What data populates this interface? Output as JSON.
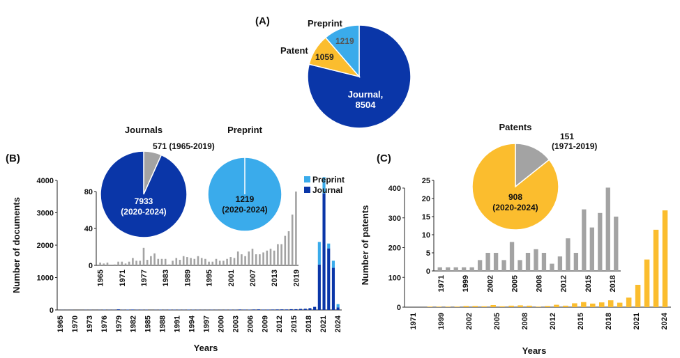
{
  "chart_data": [
    {
      "panel": "A",
      "type": "pie",
      "title": "(A)",
      "slices": [
        {
          "label": "Journal,",
          "label2": "8504",
          "value": 8504,
          "color": "#0a36a8"
        },
        {
          "label": "Patent",
          "value": 1059,
          "color": "#fbbd2e"
        },
        {
          "label": "Preprint",
          "value": 1219,
          "color": "#3aabeb"
        }
      ],
      "values_text": {
        "patent": "1059",
        "preprint": "1219"
      }
    },
    {
      "panel": "B",
      "type": "bar",
      "title": "(B)",
      "ylabel": "Number of documents",
      "xlabel": "Years",
      "ylim": [
        0,
        4000
      ],
      "yticks": [
        "0",
        "1000",
        "2000",
        "3000",
        "4000"
      ],
      "xtick_labels": [
        "1965",
        "1970",
        "1973",
        "1976",
        "1979",
        "1982",
        "1985",
        "1988",
        "1991",
        "1994",
        "1997",
        "2000",
        "2003",
        "2006",
        "2009",
        "2012",
        "2015",
        "2018",
        "2021",
        "2024"
      ],
      "legend": [
        "Preprint",
        "Journal"
      ],
      "colors": {
        "journal": "#0a36a8",
        "preprint": "#3aabeb"
      },
      "years": [
        1965,
        1966,
        1967,
        1968,
        1969,
        1970,
        1971,
        1972,
        1973,
        1974,
        1975,
        1976,
        1977,
        1978,
        1979,
        1980,
        1981,
        1982,
        1983,
        1984,
        1985,
        1986,
        1987,
        1988,
        1989,
        1990,
        1991,
        1992,
        1993,
        1994,
        1995,
        1996,
        1997,
        1998,
        1999,
        2000,
        2001,
        2002,
        2003,
        2004,
        2005,
        2006,
        2007,
        2008,
        2009,
        2010,
        2011,
        2012,
        2013,
        2014,
        2015,
        2016,
        2017,
        2018,
        2019,
        2020,
        2021,
        2022,
        2023,
        2024
      ],
      "journal": [
        3,
        2,
        3,
        0,
        1,
        4,
        4,
        2,
        4,
        8,
        5,
        5,
        19,
        6,
        10,
        13,
        7,
        7,
        7,
        1,
        5,
        8,
        6,
        10,
        9,
        8,
        7,
        10,
        8,
        7,
        4,
        4,
        7,
        5,
        5,
        7,
        9,
        8,
        15,
        12,
        10,
        15,
        18,
        12,
        12,
        14,
        16,
        18,
        16,
        23,
        23,
        32,
        37,
        55,
        95,
        1400,
        3600,
        1900,
        1300,
        80
      ],
      "preprint": [
        0,
        0,
        0,
        0,
        0,
        0,
        0,
        0,
        0,
        0,
        0,
        0,
        0,
        0,
        0,
        0,
        0,
        0,
        0,
        0,
        0,
        0,
        0,
        0,
        0,
        0,
        0,
        0,
        0,
        0,
        0,
        0,
        0,
        0,
        0,
        0,
        0,
        0,
        0,
        0,
        0,
        0,
        0,
        0,
        0,
        0,
        0,
        0,
        0,
        0,
        0,
        0,
        0,
        0,
        0,
        700,
        500,
        150,
        220,
        100
      ],
      "inset": {
        "ylim": [
          0,
          80
        ],
        "yticks": [
          "0",
          "40",
          "80"
        ],
        "xtick_labels": [
          "1965",
          "1971",
          "1977",
          "1983",
          "1989",
          "1995",
          "2001",
          "2007",
          "2013",
          "2019"
        ],
        "color": "#a3a3a3"
      },
      "pies": [
        {
          "title": "Journals",
          "slices": [
            {
              "label": "7933",
              "label2": "(2020-2024)",
              "value": 7933,
              "color": "#0a36a8"
            },
            {
              "label": "571 (1965-2019)",
              "value": 571,
              "color": "#a3a3a3"
            }
          ]
        },
        {
          "title": "Preprint",
          "slices": [
            {
              "label": "1219",
              "label2": "(2020-2024)",
              "value": 1219,
              "color": "#3aabeb"
            }
          ]
        }
      ]
    },
    {
      "panel": "C",
      "type": "bar",
      "title": "(C)",
      "ylabel": "Number of patents",
      "xlabel": "Years",
      "ylim": [
        0,
        400
      ],
      "yticks": [
        "0",
        "100",
        "200",
        "300",
        "400"
      ],
      "xtick_labels": [
        "1971",
        "1999",
        "2002",
        "2005",
        "2008",
        "2012",
        "2015",
        "2018",
        "2021",
        "2024"
      ],
      "color": "#fbbd2e",
      "years": [
        "1971",
        "1996",
        "1998",
        "1999",
        "2000",
        "2001",
        "2002",
        "2003",
        "2004",
        "2005",
        "2006",
        "2007",
        "2008",
        "2009",
        "2010",
        "2011",
        "2012",
        "2013",
        "2014",
        "2015",
        "2016",
        "2017",
        "2018",
        "2019",
        "2020",
        "2021",
        "2022",
        "2023",
        "2024"
      ],
      "values": [
        0,
        0,
        2,
        2,
        2,
        2,
        4,
        4,
        3,
        7,
        3,
        5,
        6,
        5,
        2,
        4,
        8,
        5,
        13,
        17,
        12,
        16,
        23,
        15,
        32,
        75,
        160,
        260,
        325
      ],
      "inset": {
        "ylim": [
          0,
          25
        ],
        "yticks": [
          "0",
          "5",
          "10",
          "15",
          "20",
          "25"
        ],
        "xtick_labels": [
          "1971",
          "1999",
          "2002",
          "2005",
          "2008",
          "2012",
          "2015",
          "2018"
        ],
        "values": [
          1,
          1,
          1,
          1,
          1,
          3,
          5,
          5,
          3,
          8,
          3,
          5,
          6,
          5,
          2,
          4,
          9,
          5,
          17,
          12,
          16,
          23,
          15
        ],
        "color": "#a3a3a3"
      },
      "pie": {
        "title": "Patents",
        "slices": [
          {
            "label": "908",
            "label2": "(2020-2024)",
            "value": 908,
            "color": "#fbbd2e"
          },
          {
            "label": "151",
            "label2": "(1971-2019)",
            "value": 151,
            "color": "#a3a3a3"
          }
        ]
      }
    }
  ]
}
